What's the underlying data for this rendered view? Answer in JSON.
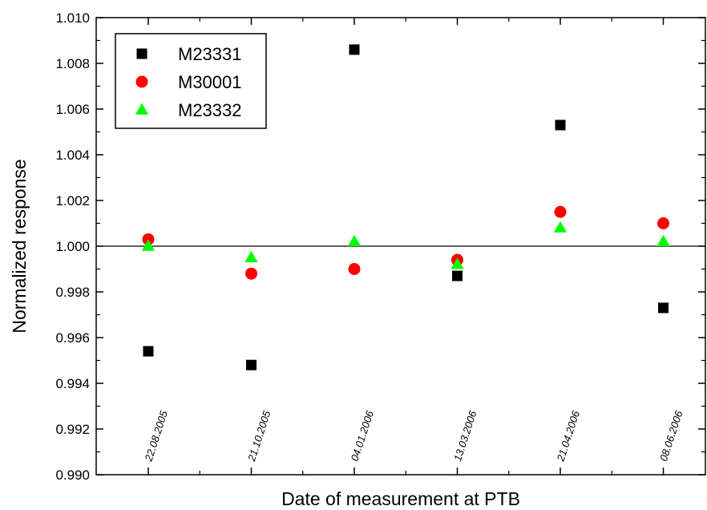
{
  "chart_data": {
    "type": "scatter",
    "xlabel": "Date of measurement at PTB",
    "ylabel": "Normalized response",
    "ylim": [
      0.99,
      1.01
    ],
    "yticks": [
      "0.990",
      "0.992",
      "0.994",
      "0.996",
      "0.998",
      "1.000",
      "1.002",
      "1.004",
      "1.006",
      "1.008",
      "1.010"
    ],
    "categories": [
      "22.08.2005",
      "21.10.2005",
      "04.01.2006",
      "13.03.2006",
      "21.04.2006",
      "08.06.2006"
    ],
    "reference_line": 1.0,
    "grid": false,
    "legend_position": "top-left",
    "series": [
      {
        "name": "M23331",
        "marker": "square",
        "color": "#000000",
        "values": [
          0.9954,
          0.9948,
          1.0086,
          0.9987,
          1.0053,
          0.9973
        ]
      },
      {
        "name": "M30001",
        "marker": "circle",
        "color": "#ff0000",
        "values": [
          1.0003,
          0.9988,
          0.999,
          0.9994,
          1.0015,
          1.001
        ]
      },
      {
        "name": "M23332",
        "marker": "triangle",
        "color": "#00ff00",
        "values": [
          1.0,
          0.9995,
          1.0002,
          0.9992,
          1.0008,
          1.0002
        ]
      }
    ]
  }
}
